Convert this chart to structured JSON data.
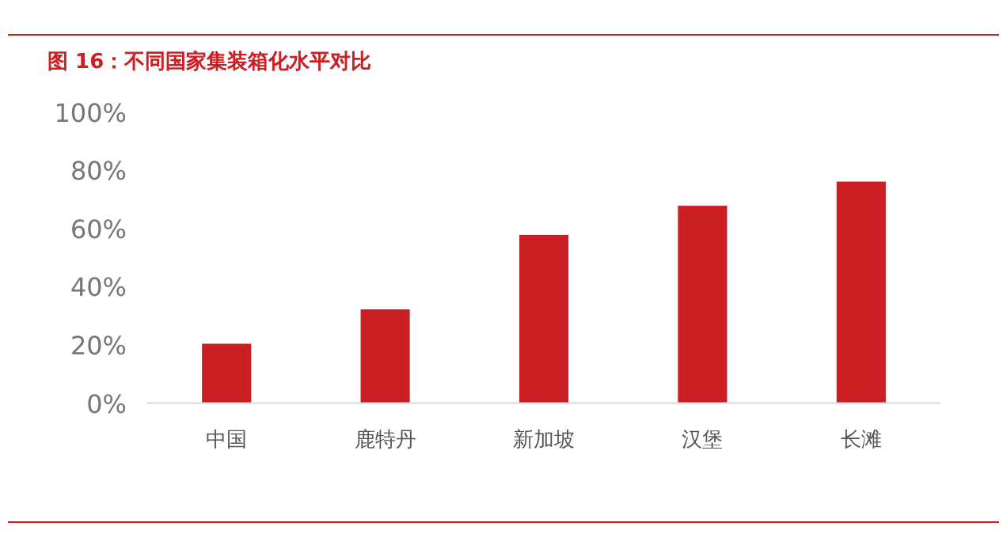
{
  "chart_data": {
    "type": "bar",
    "title": "图 16：不同国家集装箱化水平对比",
    "categories": [
      "中国",
      "鹿特丹",
      "新加坡",
      "汉堡",
      "长滩"
    ],
    "values": [
      20.4,
      32.2,
      57.8,
      67.8,
      76.1
    ],
    "color": "#cc1f24",
    "ylim": [
      0,
      100
    ],
    "yticks": [
      {
        "value": 0,
        "label": "0%"
      },
      {
        "value": 20,
        "label": "20%"
      },
      {
        "value": 40,
        "label": "40%"
      },
      {
        "value": 60,
        "label": "60%"
      },
      {
        "value": 80,
        "label": "80%"
      },
      {
        "value": 100,
        "label": "100%"
      }
    ],
    "grid": false
  }
}
